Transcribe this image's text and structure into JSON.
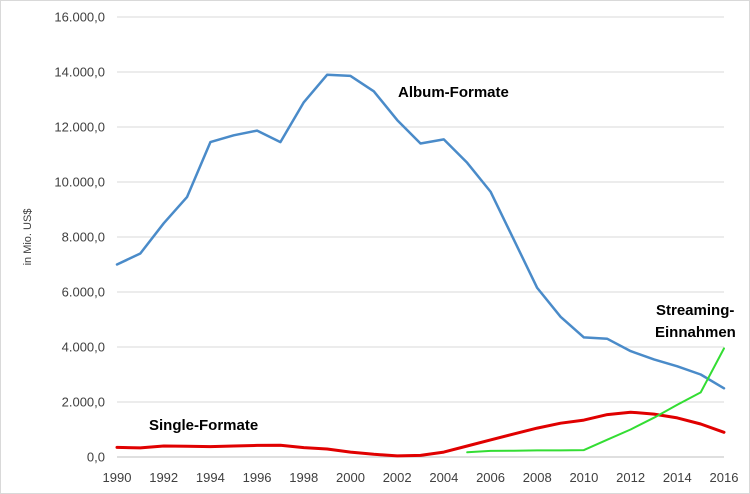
{
  "chart_data": {
    "type": "line",
    "title": "",
    "ylabel": "in Mio. US$",
    "xlabel": "",
    "ylim": [
      0,
      16000
    ],
    "y_ticks": [
      "0,0",
      "2.000,0",
      "4.000,0",
      "6.000,0",
      "8.000,0",
      "10.000,0",
      "12.000,0",
      "14.000,0",
      "16.000,0"
    ],
    "x_ticks": [
      "1990",
      "1992",
      "1994",
      "1996",
      "1998",
      "2000",
      "2002",
      "2004",
      "2006",
      "2008",
      "2010",
      "2012",
      "2014",
      "2016"
    ],
    "grid": true,
    "legend": "none",
    "x": [
      1990,
      1991,
      1992,
      1993,
      1994,
      1995,
      1996,
      1997,
      1998,
      1999,
      2000,
      2001,
      2002,
      2003,
      2004,
      2005,
      2006,
      2007,
      2008,
      2009,
      2010,
      2011,
      2012,
      2013,
      2014,
      2015,
      2016
    ],
    "series": [
      {
        "color": "#4a8bc9",
        "values": [
          7000,
          7400,
          8500,
          9450,
          11450,
          11700,
          11870,
          11450,
          12900,
          13900,
          13860,
          13300,
          12250,
          11400,
          11550,
          10700,
          9650,
          7900,
          6150,
          5100,
          4350,
          4300,
          3850,
          3550,
          3300,
          3000,
          2500
        ]
      },
      {
        "color": "#e00000",
        "values": [
          350,
          330,
          400,
          390,
          380,
          400,
          420,
          430,
          340,
          290,
          180,
          100,
          40,
          60,
          180,
          400,
          620,
          840,
          1050,
          1230,
          1340,
          1540,
          1630,
          1560,
          1420,
          1200,
          900
        ]
      },
      {
        "color": "#33dd33",
        "values": [
          null,
          null,
          null,
          null,
          null,
          null,
          null,
          null,
          null,
          null,
          null,
          null,
          null,
          null,
          null,
          170,
          220,
          230,
          240,
          240,
          250,
          630,
          1000,
          1430,
          1900,
          2350,
          3950
        ]
      }
    ],
    "annotations": [
      {
        "text": "Album-Formate",
        "series": 0
      },
      {
        "text": "Single-Formate",
        "series": 1
      },
      {
        "text": "Streaming-",
        "series": 2
      },
      {
        "text": "Einnahmen",
        "series": 2
      }
    ]
  }
}
